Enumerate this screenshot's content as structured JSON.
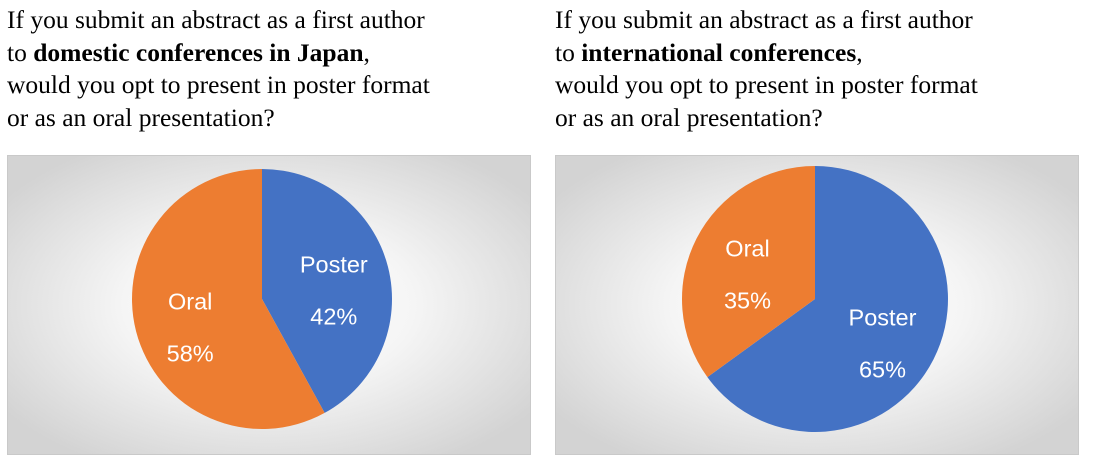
{
  "left_panel": {
    "question": {
      "line1": "If you submit an abstract as a first author",
      "line2_prefix": "to ",
      "line2_bold": "domestic conferences in Japan",
      "line2_suffix": ",",
      "line3": "would you opt to present in poster format",
      "line4": "or as an oral presentation?"
    }
  },
  "right_panel": {
    "question": {
      "line1": "If you submit an abstract as a first author",
      "line2_prefix": "to ",
      "line2_bold": "international conferences",
      "line2_suffix": ",",
      "line3": "would you opt to present in poster format",
      "line4": "or as an oral presentation?"
    }
  },
  "chart_data": [
    {
      "type": "pie",
      "categories": [
        "Poster",
        "Oral"
      ],
      "values": [
        42,
        58
      ],
      "value_labels": [
        "42%",
        "58%"
      ],
      "colors": [
        "#4472C4",
        "#ED7D31"
      ],
      "start_angle": "12 o'clock, clockwise"
    },
    {
      "type": "pie",
      "categories": [
        "Poster",
        "Oral"
      ],
      "values": [
        65,
        35
      ],
      "value_labels": [
        "65%",
        "35%"
      ],
      "colors": [
        "#4472C4",
        "#ED7D31"
      ],
      "start_angle": "12 o'clock, clockwise"
    }
  ]
}
